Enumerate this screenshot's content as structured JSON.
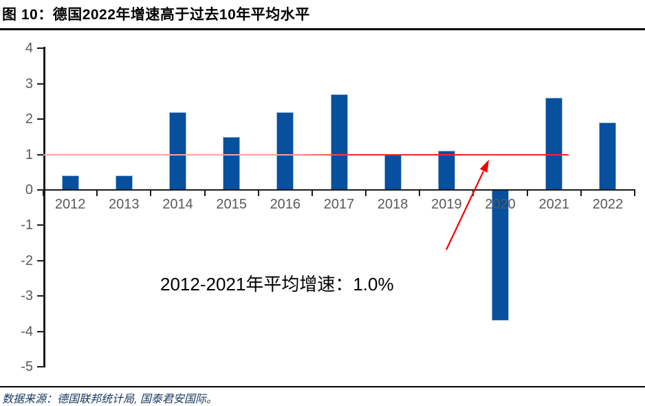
{
  "figure": {
    "title": "图 10：德国2022年增速高于过去10年平均水平",
    "source": "数据来源：德国联邦统计局, 国泰君安国际。"
  },
  "colors": {
    "bar": "#06509E",
    "bar_edge": "#BACBE6",
    "reference_line": "#FF2222",
    "arrow": "#F20000",
    "axis": "#1A1A1A",
    "axis_label": "#595959",
    "source_text": "#17375D"
  },
  "chart_data": {
    "type": "bar",
    "title": "德国2022年增速高于过去10年平均水平",
    "categories": [
      "2012",
      "2013",
      "2014",
      "2015",
      "2016",
      "2017",
      "2018",
      "2019",
      "2020",
      "2021",
      "2022"
    ],
    "values": [
      0.4,
      0.4,
      2.2,
      1.5,
      2.2,
      2.7,
      1.0,
      1.1,
      -3.7,
      2.6,
      1.9
    ],
    "ylim": [
      -5,
      4
    ],
    "yticks": [
      4,
      3,
      2,
      1,
      0,
      -1,
      -2,
      -3,
      -4,
      -5
    ],
    "grid": false,
    "legend": null,
    "reference_line": {
      "value": 1.0
    },
    "annotation": "2012-2021年平均增速：1.0%"
  }
}
